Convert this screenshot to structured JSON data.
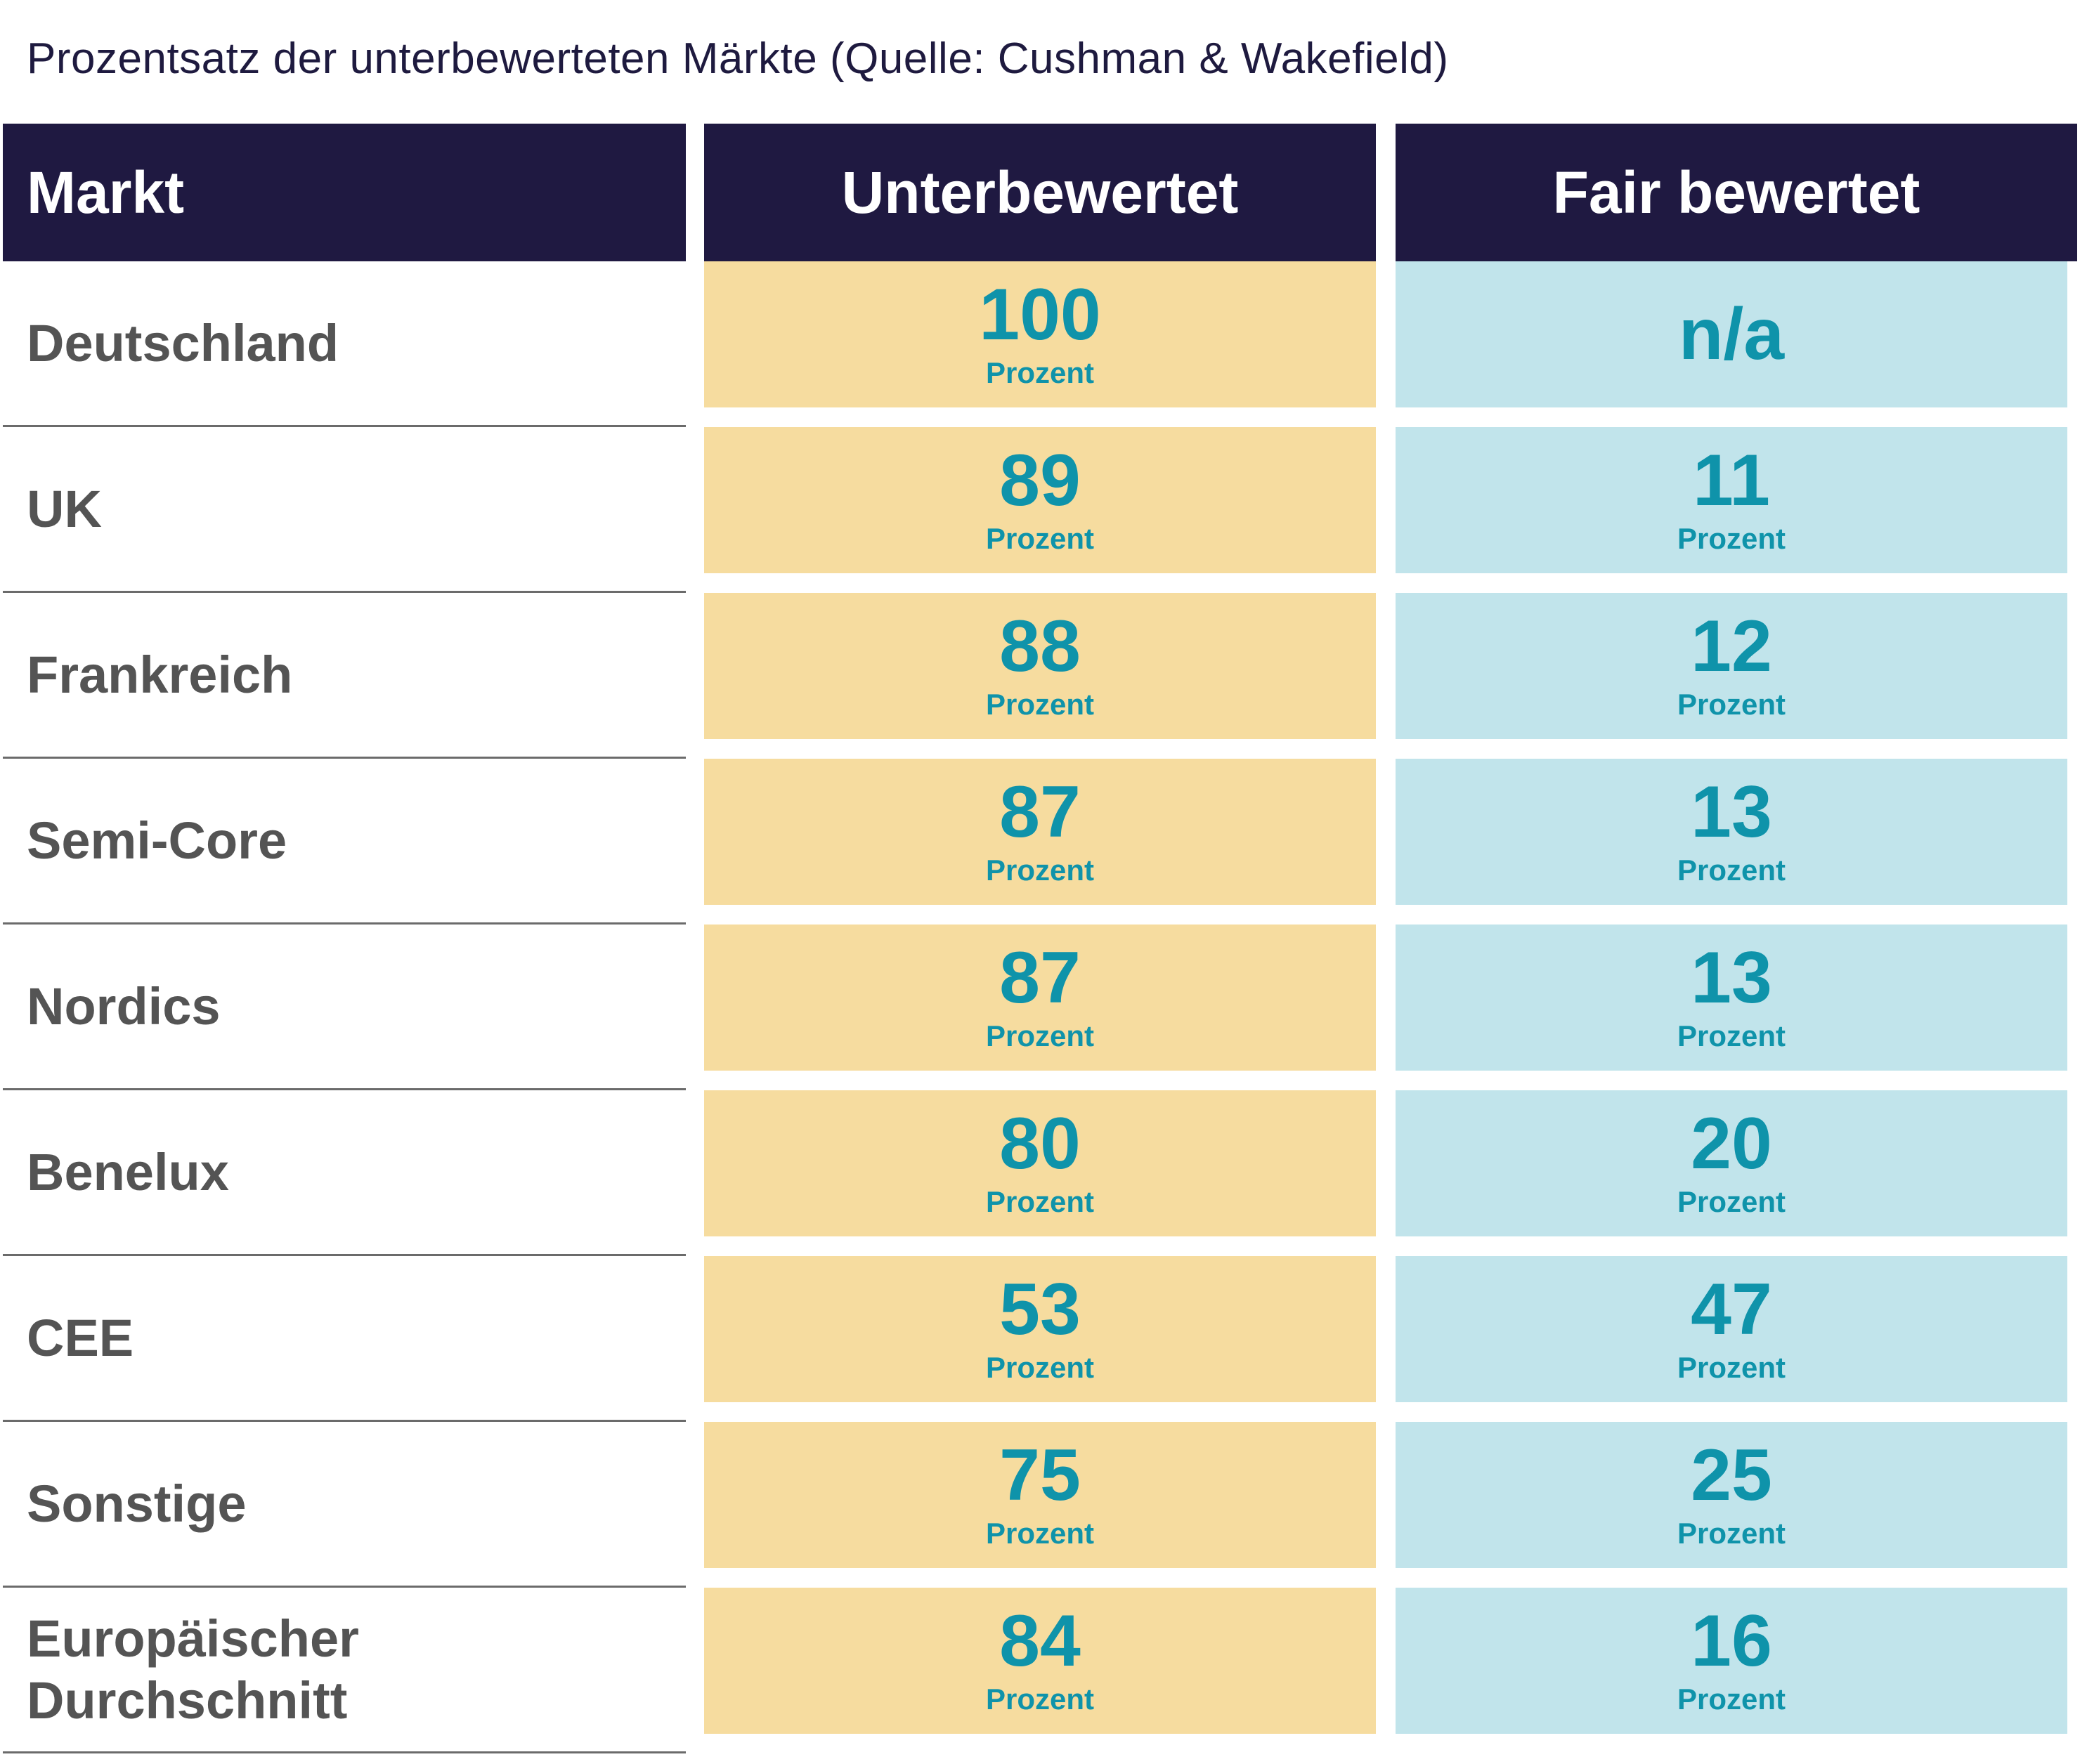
{
  "title": "Prozentsatz der unterbewerteten Märkte (Quelle: Cushman & Wakefield)",
  "columns": [
    "Markt",
    "Unterbewertet",
    "Fair bewertet"
  ],
  "unit_label": "Prozent",
  "colors": {
    "header": "#1f1941",
    "undervalued": "#f6dc9f",
    "fair": "#c1e4eb",
    "value_text": "#0f93aa",
    "market_text": "#545454"
  },
  "rows": [
    {
      "market": "Deutschland",
      "undervalued": "100",
      "fair": "n/a"
    },
    {
      "market": "UK",
      "undervalued": "89",
      "fair": "11"
    },
    {
      "market": "Frankreich",
      "undervalued": "88",
      "fair": "12"
    },
    {
      "market": "Semi-Core",
      "undervalued": "87",
      "fair": "13"
    },
    {
      "market": "Nordics",
      "undervalued": "87",
      "fair": "13"
    },
    {
      "market": "Benelux",
      "undervalued": "80",
      "fair": "20"
    },
    {
      "market": "CEE",
      "undervalued": "53",
      "fair": "47"
    },
    {
      "market": "Sonstige",
      "undervalued": "75",
      "fair": "25"
    },
    {
      "market": "Europäischer\nDurchschnitt",
      "undervalued": "84",
      "fair": "16"
    }
  ]
}
